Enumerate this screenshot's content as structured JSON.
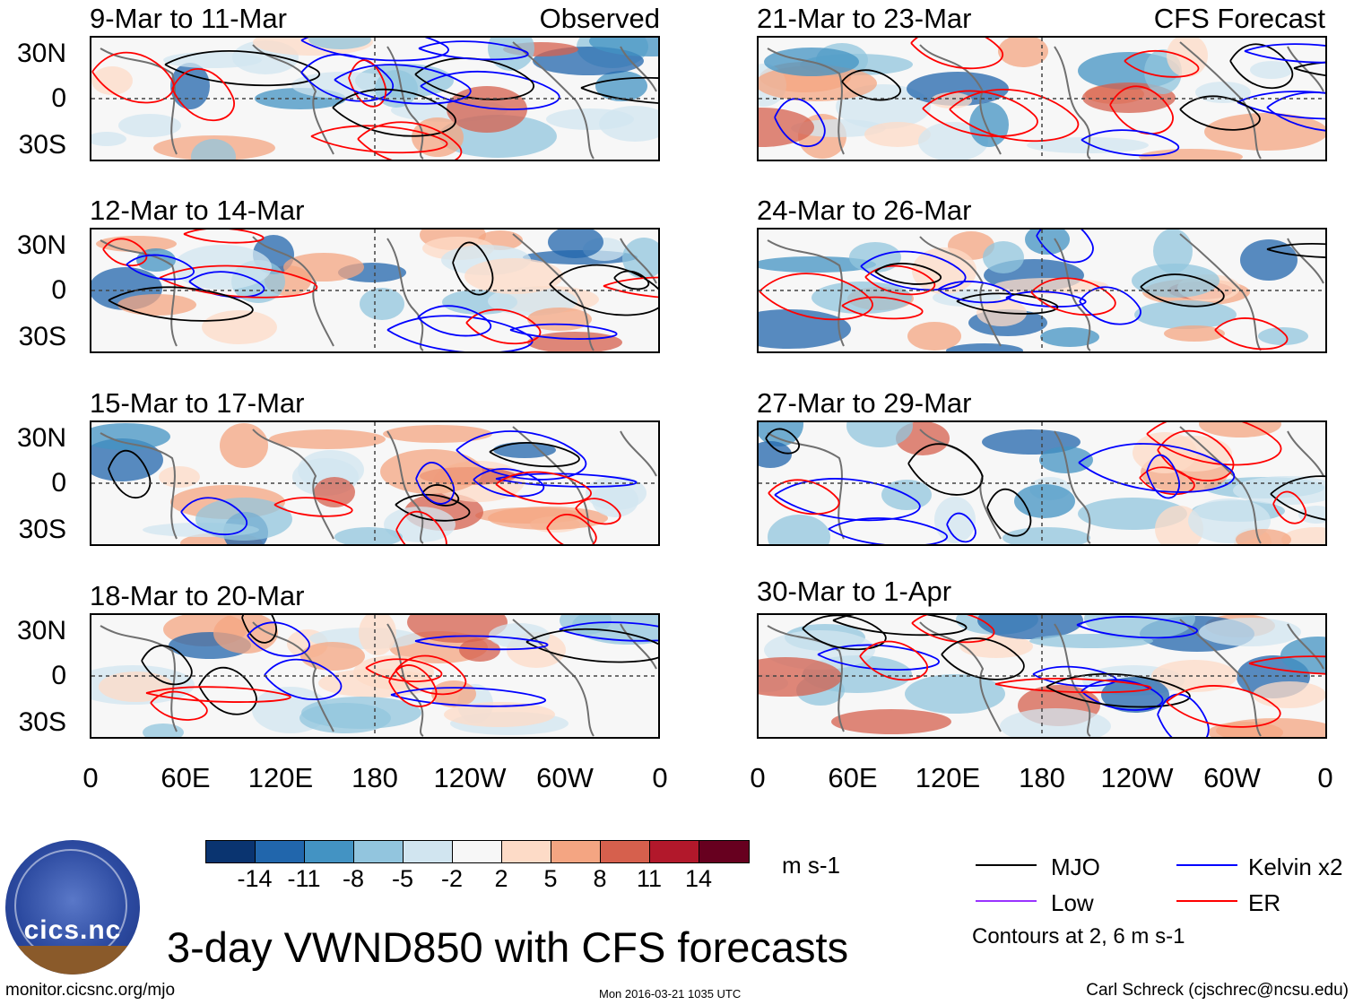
{
  "panels_left": [
    {
      "date": "9-Mar to 11-Mar",
      "label": "Observed"
    },
    {
      "date": "12-Mar to 14-Mar",
      "label": ""
    },
    {
      "date": "15-Mar to 17-Mar",
      "label": ""
    },
    {
      "date": "18-Mar to 20-Mar",
      "label": ""
    }
  ],
  "panels_right": [
    {
      "date": "21-Mar to 23-Mar",
      "label": "CFS Forecast"
    },
    {
      "date": "24-Mar to 26-Mar",
      "label": ""
    },
    {
      "date": "27-Mar to 29-Mar",
      "label": ""
    },
    {
      "date": "30-Mar to 1-Apr",
      "label": ""
    }
  ],
  "y_axis": {
    "top": "30N",
    "mid": "0",
    "bottom": "30S"
  },
  "x_axis": [
    "0",
    "60E",
    "120E",
    "180",
    "120W",
    "60W",
    "0"
  ],
  "colorbar": {
    "colors": [
      "#0a3470",
      "#2166ac",
      "#4393c3",
      "#92c5de",
      "#d1e5f0",
      "#f7f7f7",
      "#fddbc7",
      "#f4a582",
      "#d6604d",
      "#b2182b",
      "#67001f"
    ],
    "labels": [
      "-14",
      "-11",
      "-8",
      "-5",
      "-2",
      "2",
      "5",
      "8",
      "11",
      "14"
    ],
    "units": "m s-1"
  },
  "legend": {
    "mjo": "MJO",
    "low": "Low",
    "kelvin": "Kelvin x2",
    "er": "ER",
    "colors": {
      "mjo": "#000000",
      "low": "#9933ff",
      "kelvin": "#0000ff",
      "er": "#ff0000"
    },
    "contours": "Contours at 2, 6 m s-1"
  },
  "title": "3-day VWND850 with CFS forecasts",
  "logo_text": "cics.nc",
  "footer": {
    "left": "monitor.cicsnc.org/mjo",
    "center": "Mon 2016-03-21 1035 UTC",
    "right": "Carl Schreck (cjschrec@ncsu.edu)"
  }
}
